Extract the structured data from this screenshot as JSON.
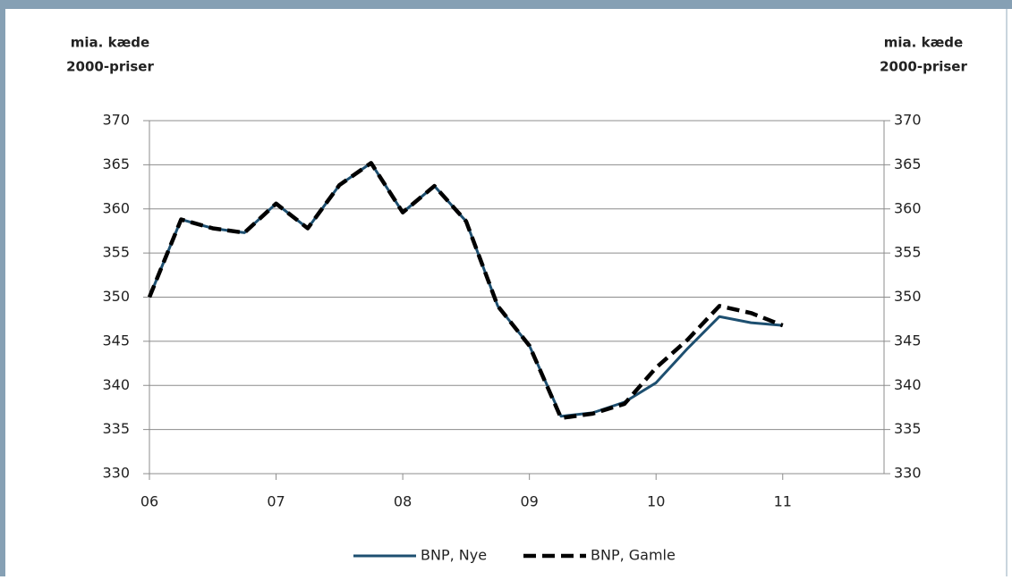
{
  "chart_data": {
    "type": "line",
    "ylabel": [
      "mia. kæde",
      "2000-priser"
    ],
    "y2label": [
      "mia. kæde",
      "2000-priser"
    ],
    "x": [
      2006,
      2006.25,
      2006.5,
      2006.75,
      2007,
      2007.25,
      2007.5,
      2007.75,
      2008,
      2008.25,
      2008.5,
      2008.75,
      2009,
      2009.25,
      2009.5,
      2009.75,
      2010,
      2010.25,
      2010.5,
      2010.75,
      2011
    ],
    "series": [
      {
        "name": "BNP, Nye",
        "color": "#1d4f70",
        "dash": false,
        "values": [
          350,
          358.8,
          357.8,
          357.3,
          360.6,
          357.8,
          362.7,
          365.2,
          359.6,
          362.6,
          358.6,
          349,
          344.5,
          336.5,
          336.9,
          338.1,
          340.3,
          344.2,
          347.8,
          347.1,
          346.8
        ]
      },
      {
        "name": "BNP, Gamle",
        "color": "#000000",
        "dash": true,
        "values": [
          350,
          358.8,
          357.8,
          357.3,
          360.6,
          357.8,
          362.7,
          365.2,
          359.6,
          362.6,
          358.6,
          349,
          344.5,
          336.3,
          336.8,
          337.9,
          342.0,
          345.2,
          349.0,
          348.2,
          346.8
        ]
      }
    ],
    "xlim": [
      2006,
      2011.8
    ],
    "xticks": [
      {
        "value": 2006,
        "label": "06"
      },
      {
        "value": 2007,
        "label": "07"
      },
      {
        "value": 2008,
        "label": "08"
      },
      {
        "value": 2009,
        "label": "09"
      },
      {
        "value": 2010,
        "label": "10"
      },
      {
        "value": 2011,
        "label": "11"
      }
    ],
    "ylim": [
      330,
      370
    ],
    "yticks": [
      330,
      335,
      340,
      345,
      350,
      355,
      360,
      365,
      370
    ],
    "y2lim": [
      330,
      370
    ],
    "y2ticks": [
      330,
      335,
      340,
      345,
      350,
      355,
      360,
      365,
      370
    ],
    "grid": true,
    "legend": "bottom"
  }
}
